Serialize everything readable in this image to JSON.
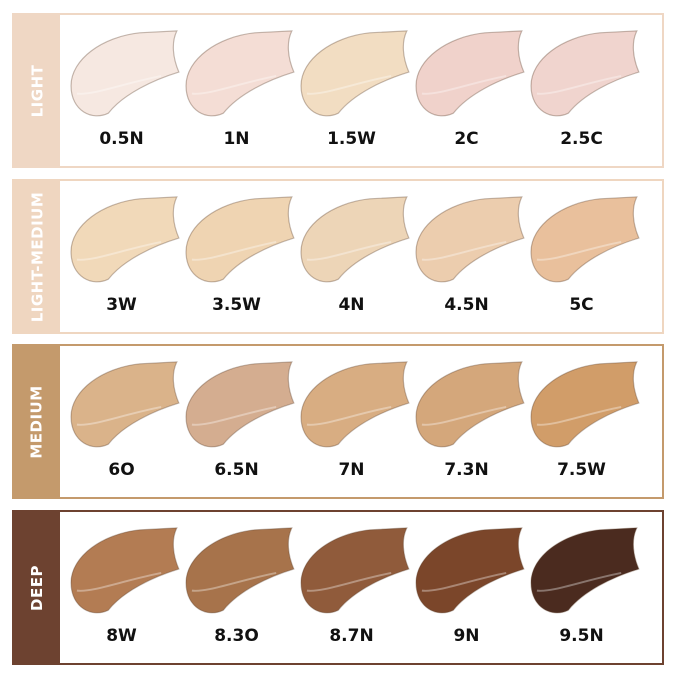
{
  "groups": [
    {
      "label": "LIGHT",
      "color": "#efd7c4",
      "shades": [
        {
          "name": "0.5N",
          "color": "#f6e8e1"
        },
        {
          "name": "1N",
          "color": "#f4ddd5"
        },
        {
          "name": "1.5W",
          "color": "#f2ddc2"
        },
        {
          "name": "2C",
          "color": "#f0d2cb"
        },
        {
          "name": "2.5C",
          "color": "#f0d4ce"
        }
      ]
    },
    {
      "label": "LIGHT-MEDIUM",
      "color": "#efd6c0",
      "shades": [
        {
          "name": "3W",
          "color": "#f1d9b9"
        },
        {
          "name": "3.5W",
          "color": "#efd4b2"
        },
        {
          "name": "4N",
          "color": "#edd5b7"
        },
        {
          "name": "4.5N",
          "color": "#eccdae"
        },
        {
          "name": "5C",
          "color": "#e9c09c"
        }
      ]
    },
    {
      "label": "MEDIUM",
      "color": "#c49a6c",
      "shades": [
        {
          "name": "6O",
          "color": "#dab38a"
        },
        {
          "name": "6.5N",
          "color": "#d4ad90"
        },
        {
          "name": "7N",
          "color": "#d8ad82"
        },
        {
          "name": "7.3N",
          "color": "#d4a77b"
        },
        {
          "name": "7.5W",
          "color": "#d19d69"
        }
      ]
    },
    {
      "label": "DEEP",
      "color": "#6d4230",
      "shades": [
        {
          "name": "8W",
          "color": "#b37c53"
        },
        {
          "name": "8.3O",
          "color": "#a7734b"
        },
        {
          "name": "8.7N",
          "color": "#905b3b"
        },
        {
          "name": "9N",
          "color": "#7b462a"
        },
        {
          "name": "9.5N",
          "color": "#4b2b1f"
        }
      ]
    }
  ]
}
